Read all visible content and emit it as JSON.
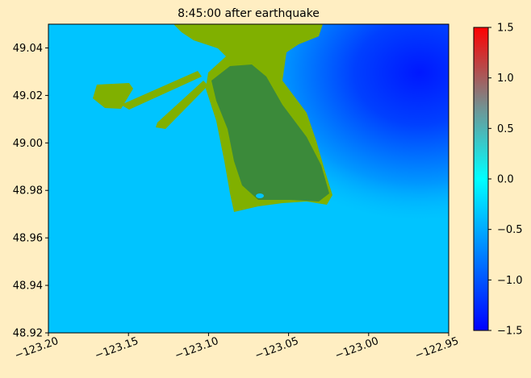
{
  "chart_data": {
    "type": "heatmap",
    "title": "8:45:00 after earthquake",
    "xlim": [
      -123.2,
      -122.95
    ],
    "xticks": [
      {
        "value": -123.2,
        "label": "−123.20"
      },
      {
        "value": -123.15,
        "label": "−123.15"
      },
      {
        "value": -123.1,
        "label": "−123.10"
      },
      {
        "value": -123.05,
        "label": "−123.05"
      },
      {
        "value": -123.0,
        "label": "−123.00"
      },
      {
        "value": -122.95,
        "label": "−122.95"
      }
    ],
    "ylim": [
      48.92,
      49.05
    ],
    "yticks": [
      48.92,
      48.94,
      48.96,
      48.98,
      {
        "value": 49.0,
        "label": "49.00"
      },
      49.02,
      49.04
    ],
    "colorbar": {
      "clim": [
        -1.5,
        1.5
      ],
      "ticks": [
        {
          "value": -1.5,
          "label": "−1.5"
        },
        {
          "value": -1.0,
          "label": "−1.0"
        },
        {
          "value": -0.5,
          "label": "−0.5"
        },
        {
          "value": 0.0,
          "label": "0.0"
        },
        0.5,
        {
          "value": 1.0,
          "label": "1.0"
        },
        1.5
      ]
    }
  }
}
